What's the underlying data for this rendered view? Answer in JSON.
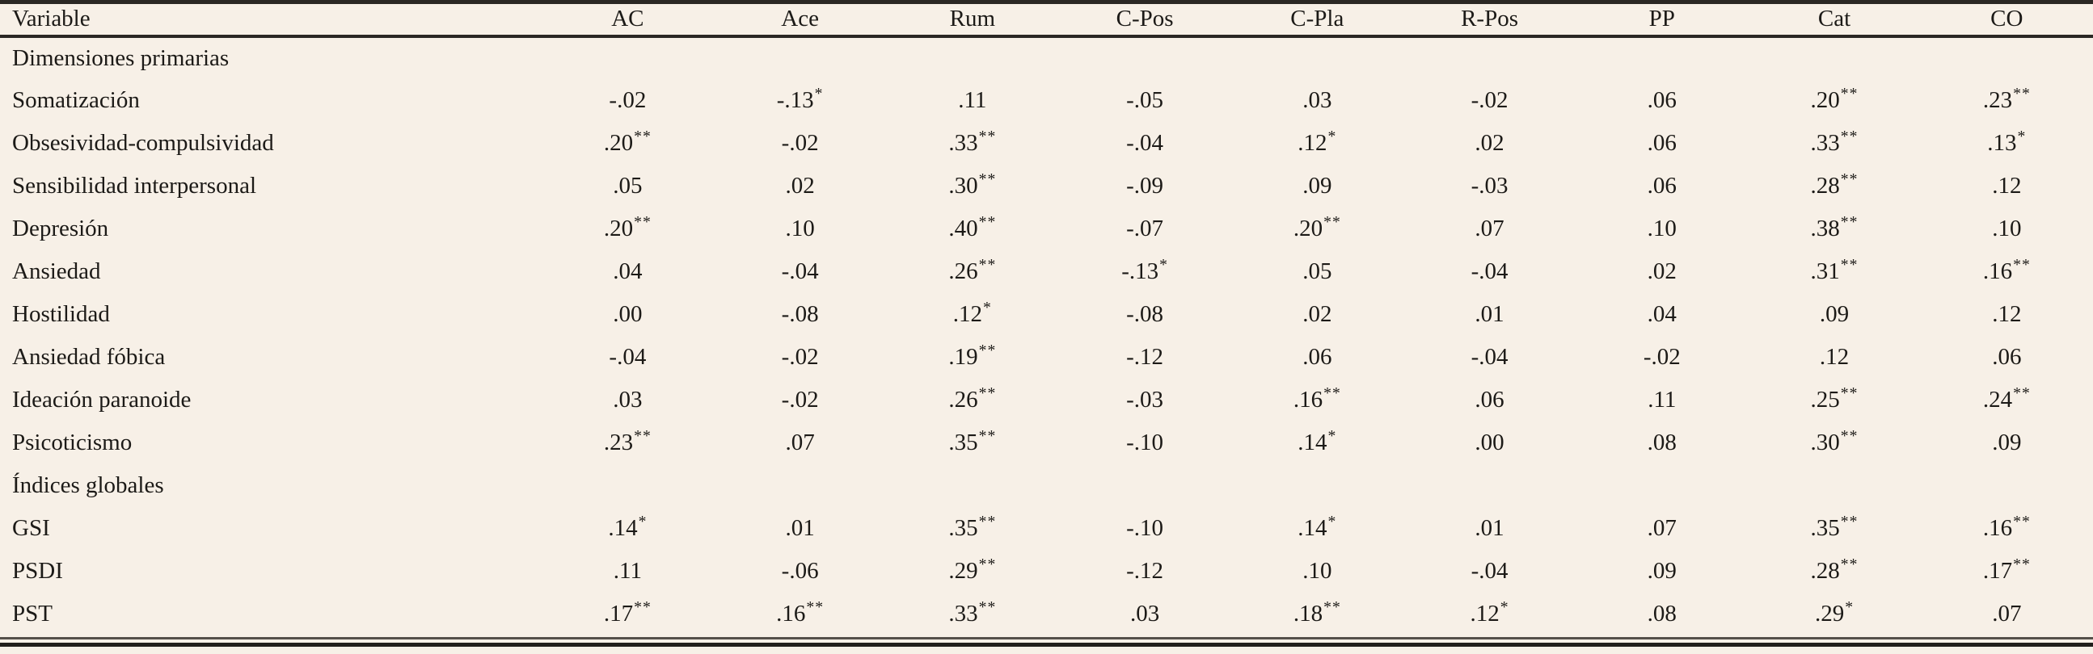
{
  "colors": {
    "background": "#f7f0e7",
    "text": "#1c1a17",
    "rule_dark": "#2b2824",
    "rule_thin": "#55504a"
  },
  "table": {
    "columns": [
      "Variable",
      "AC",
      "Ace",
      "Rum",
      "C-Pos",
      "C-Pla",
      "R-Pos",
      "PP",
      "Cat",
      "CO"
    ],
    "rows": [
      {
        "type": "section",
        "label": "Dimensiones primarias"
      },
      {
        "type": "data",
        "label": "Somatización",
        "values": [
          "-.02",
          "-.13*",
          ".11",
          "-.05",
          ".03",
          "-.02",
          ".06",
          ".20**",
          ".23**"
        ]
      },
      {
        "type": "data",
        "label": "Obsesividad-compulsividad",
        "values": [
          ".20**",
          "-.02",
          ".33**",
          "-.04",
          ".12*",
          ".02",
          ".06",
          ".33**",
          ".13*"
        ]
      },
      {
        "type": "data",
        "label": "Sensibilidad interpersonal",
        "values": [
          ".05",
          ".02",
          ".30**",
          "-.09",
          ".09",
          "-.03",
          ".06",
          ".28**",
          ".12"
        ]
      },
      {
        "type": "data",
        "label": "Depresión",
        "values": [
          ".20**",
          ".10",
          ".40**",
          "-.07",
          ".20**",
          ".07",
          ".10",
          ".38**",
          ".10"
        ]
      },
      {
        "type": "data",
        "label": "Ansiedad",
        "values": [
          ".04",
          "-.04",
          ".26**",
          "-.13*",
          ".05",
          "-.04",
          ".02",
          ".31**",
          ".16**"
        ]
      },
      {
        "type": "data",
        "label": "Hostilidad",
        "values": [
          ".00",
          "-.08",
          ".12*",
          "-.08",
          ".02",
          ".01",
          ".04",
          ".09",
          ".12"
        ]
      },
      {
        "type": "data",
        "label": "Ansiedad fóbica",
        "values": [
          "-.04",
          "-.02",
          ".19**",
          "-.12",
          ".06",
          "-.04",
          "-.02",
          ".12",
          ".06"
        ]
      },
      {
        "type": "data",
        "label": "Ideación paranoide",
        "values": [
          ".03",
          "-.02",
          ".26**",
          "-.03",
          ".16**",
          ".06",
          ".11",
          ".25**",
          ".24**"
        ]
      },
      {
        "type": "data",
        "label": "Psicoticismo",
        "values": [
          ".23**",
          ".07",
          ".35**",
          "-.10",
          ".14*",
          ".00",
          ".08",
          ".30**",
          ".09"
        ]
      },
      {
        "type": "section",
        "label": "Índices globales"
      },
      {
        "type": "data",
        "label": "GSI",
        "values": [
          ".14*",
          ".01",
          ".35**",
          "-.10",
          ".14*",
          ".01",
          ".07",
          ".35**",
          ".16**"
        ]
      },
      {
        "type": "data",
        "label": "PSDI",
        "values": [
          ".11",
          "-.06",
          ".29**",
          "-.12",
          ".10",
          "-.04",
          ".09",
          ".28**",
          ".17**"
        ]
      },
      {
        "type": "data",
        "label": "PST",
        "values": [
          ".17**",
          ".16**",
          ".33**",
          ".03",
          ".18**",
          ".12*",
          ".08",
          ".29*",
          ".07"
        ]
      }
    ]
  }
}
